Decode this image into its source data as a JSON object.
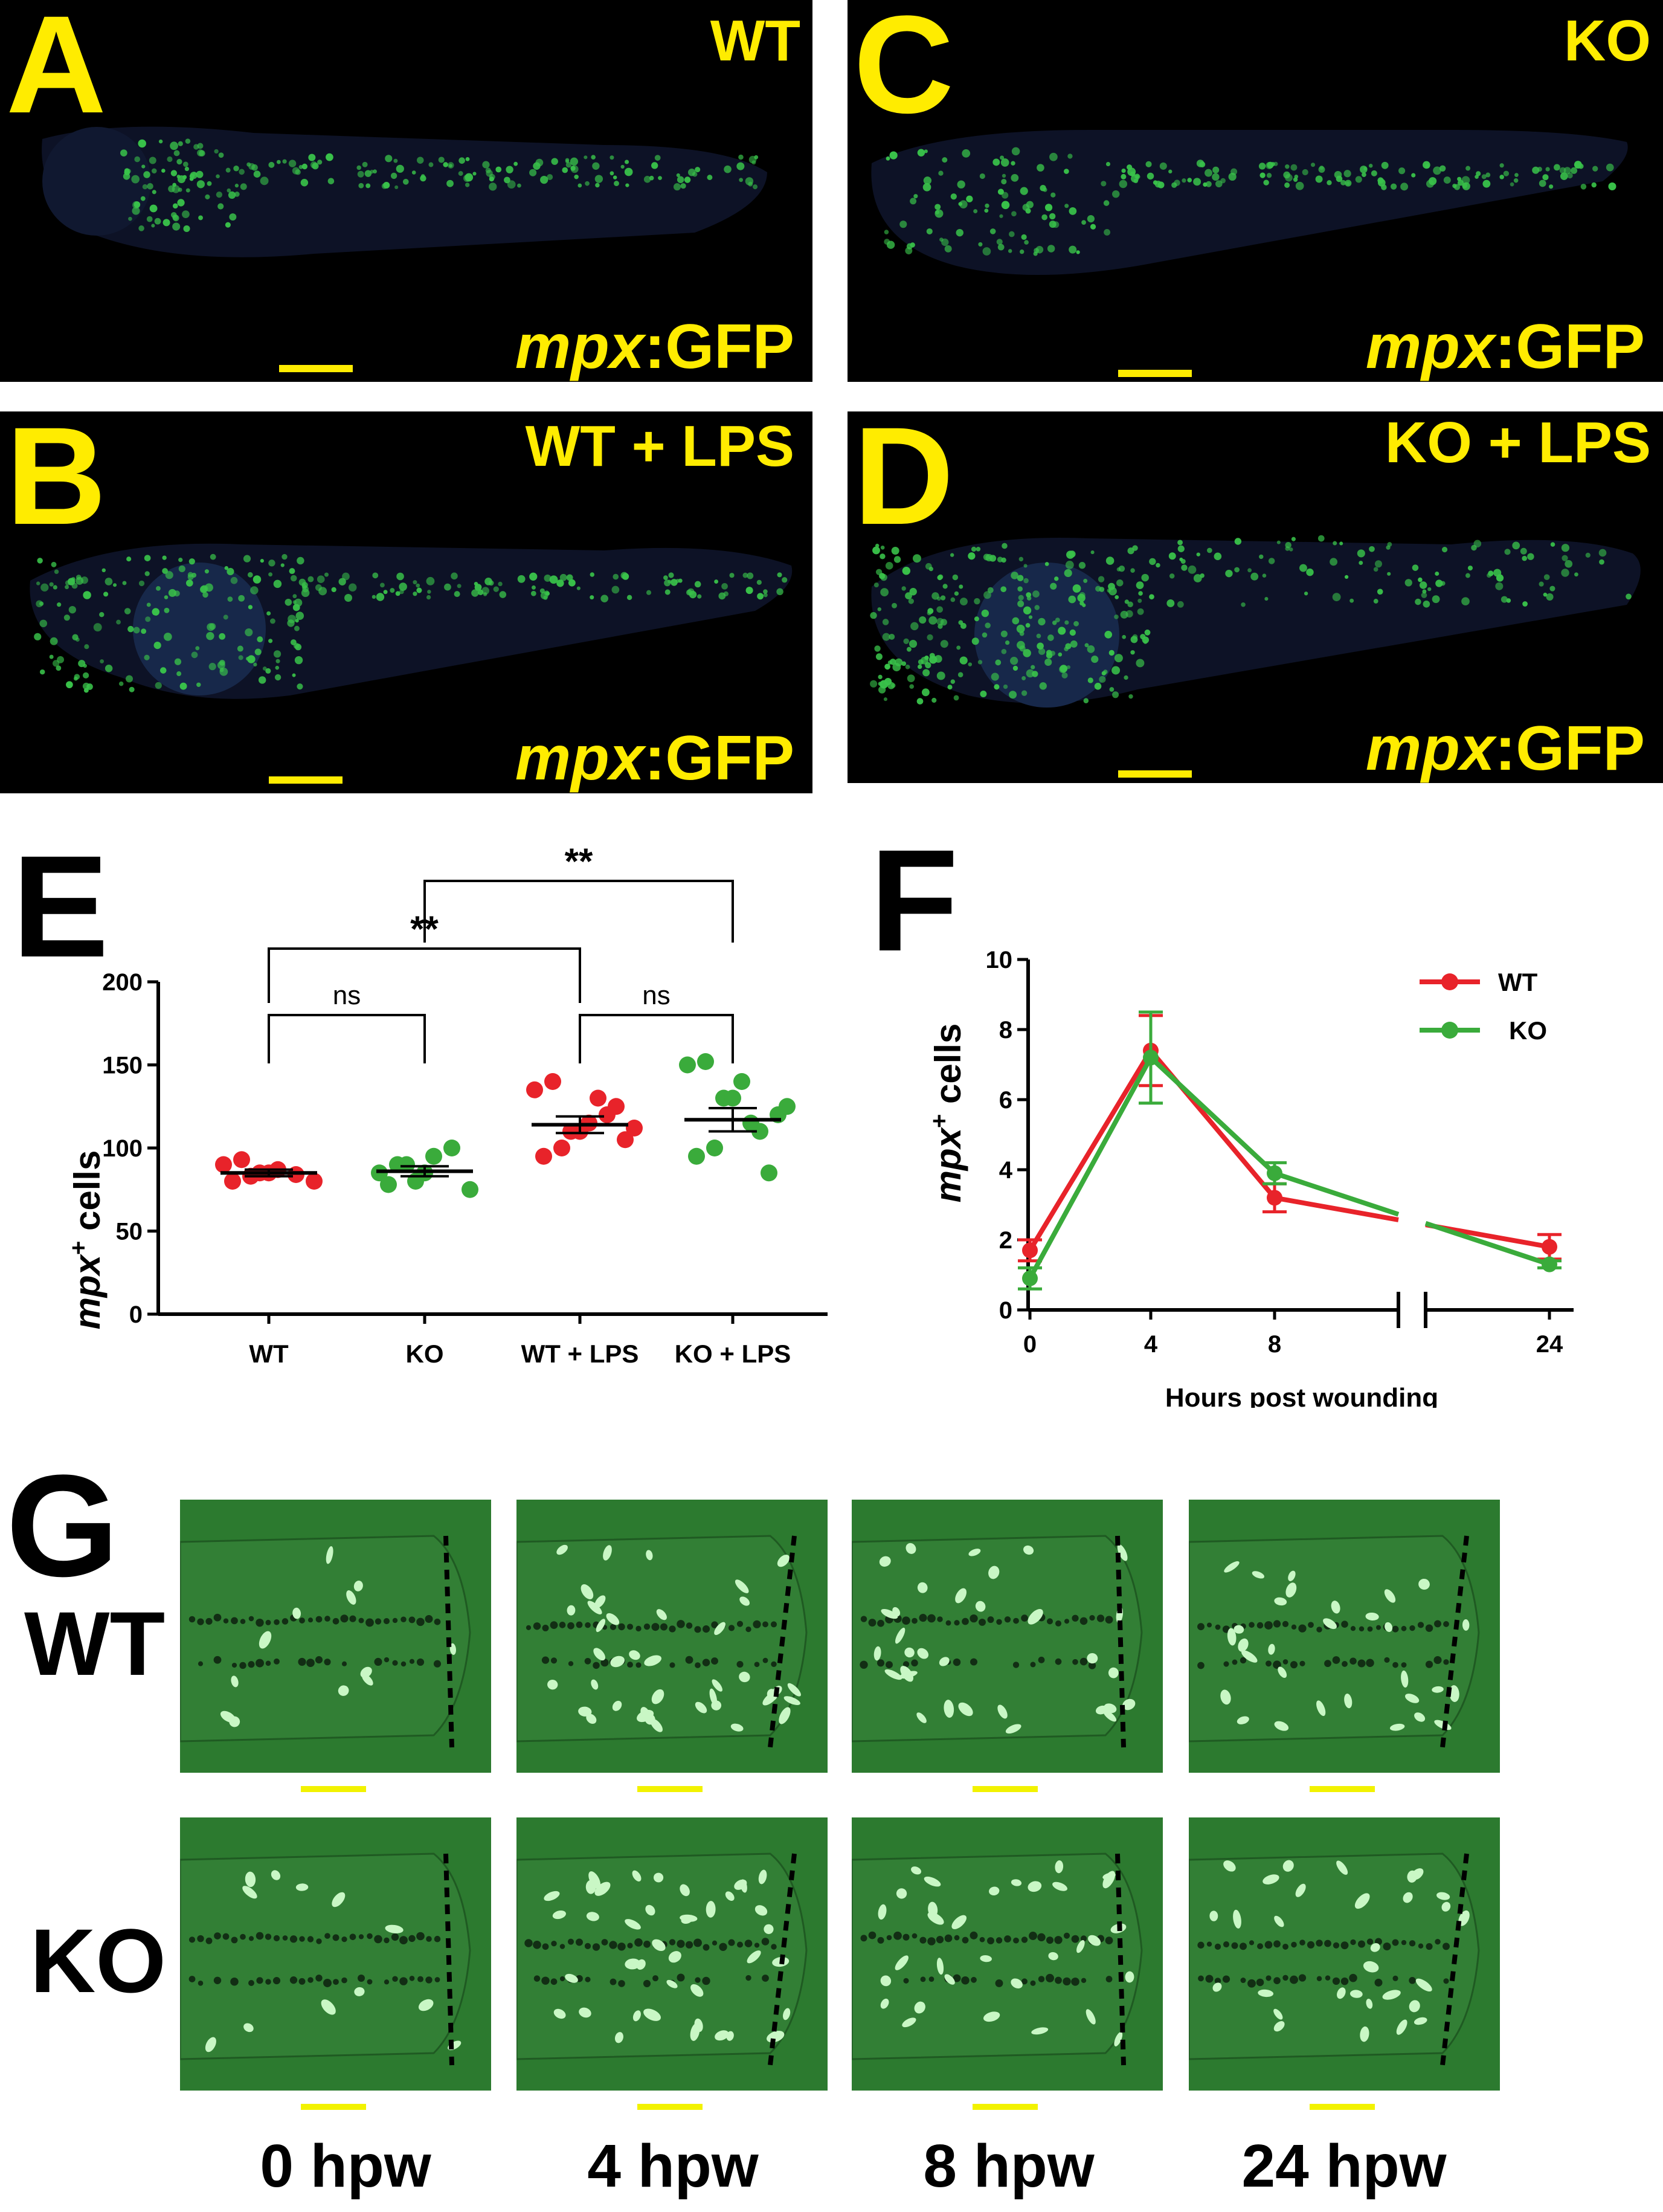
{
  "panels": [
    {
      "letter": "A",
      "condition": "WT",
      "reporter_italic": "mpx",
      "reporter_rest": ":GFP"
    },
    {
      "letter": "B",
      "condition": "WT + LPS",
      "reporter_italic": "mpx",
      "reporter_rest": ":GFP"
    },
    {
      "letter": "C",
      "condition": "KO",
      "reporter_italic": "mpx",
      "reporter_rest": ":GFP"
    },
    {
      "letter": "D",
      "condition": "KO + LPS",
      "reporter_italic": "mpx",
      "reporter_rest": ":GFP"
    }
  ],
  "panel_e": {
    "letter": "E",
    "ylabel_italic": "mpx",
    "ylabel_sup": "+",
    "ylabel_rest": " cells",
    "significance": [
      "**",
      "**",
      "ns",
      "ns"
    ]
  },
  "panel_f": {
    "letter": "F",
    "ylabel_italic": "mpx",
    "ylabel_sup": "+",
    "ylabel_rest": " cells"
  },
  "chart_data": [
    {
      "type": "scatter",
      "categories": [
        "WT",
        "KO",
        "WT + LPS",
        "KO + LPS"
      ],
      "ylim": [
        0,
        200
      ],
      "yticks": [
        0,
        50,
        100,
        150,
        200
      ],
      "colors": [
        "#e8232a",
        "#3aab3b",
        "#e8232a",
        "#3aab3b"
      ],
      "points": [
        [
          90,
          93,
          85,
          87,
          84,
          80,
          80,
          83,
          85
        ],
        [
          85,
          90,
          80,
          95,
          100,
          75,
          78,
          90,
          85
        ],
        [
          135,
          140,
          110,
          115,
          120,
          105,
          95,
          100,
          110,
          130,
          125,
          112
        ],
        [
          150,
          152,
          130,
          140,
          110,
          120,
          95,
          100,
          130,
          115,
          85,
          125
        ]
      ],
      "mean": [
        85,
        86,
        114,
        117
      ],
      "sem": [
        2,
        3,
        5,
        7
      ]
    },
    {
      "type": "line",
      "xlabel": "Hours post wounding",
      "x": [
        0,
        4,
        8,
        24
      ],
      "xticks": [
        "0",
        "4",
        "8",
        "24"
      ],
      "ylim": [
        0,
        10
      ],
      "yticks": [
        0,
        2,
        4,
        6,
        8,
        10
      ],
      "series": [
        {
          "name": "WT",
          "color": "#e8232a",
          "values": [
            1.7,
            7.4,
            3.2,
            1.8
          ],
          "err": [
            0.3,
            1.0,
            0.4,
            0.35
          ]
        },
        {
          "name": "KO",
          "color": "#3aab3b",
          "values": [
            0.9,
            7.2,
            3.9,
            1.3
          ],
          "err": [
            0.3,
            1.3,
            0.3,
            0.1
          ]
        }
      ]
    }
  ],
  "panel_g": {
    "letter": "G",
    "rows": [
      "WT",
      "KO"
    ],
    "columns": [
      "0 hpw",
      "4 hpw",
      "8 hpw",
      "24 hpw"
    ]
  }
}
